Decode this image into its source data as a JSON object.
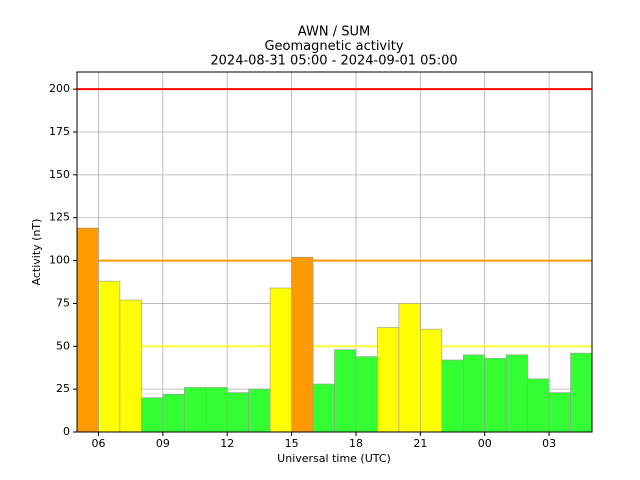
{
  "chart_data": {
    "type": "bar",
    "title": [
      "AWN / SUM",
      "Geomagnetic activity",
      "2024-08-31 05:00 - 2024-09-01 05:00"
    ],
    "xlabel": "Universal time (UTC)",
    "ylabel": "Activity (nT)",
    "x": [
      5,
      6,
      7,
      8,
      9,
      10,
      11,
      12,
      13,
      14,
      15,
      16,
      17,
      18,
      19,
      20,
      21,
      22,
      23,
      24,
      25,
      26,
      27,
      28
    ],
    "values": [
      119,
      88,
      77,
      20,
      22,
      26,
      26,
      23,
      25,
      84,
      102,
      28,
      48,
      44,
      61,
      75,
      60,
      42,
      45,
      43,
      45,
      31,
      23,
      46
    ],
    "colors": [
      "#ff9900",
      "#ffff00",
      "#ffff00",
      "#33ff33",
      "#33ff33",
      "#33ff33",
      "#33ff33",
      "#33ff33",
      "#33ff33",
      "#ffff00",
      "#ff9900",
      "#33ff33",
      "#33ff33",
      "#33ff33",
      "#ffff00",
      "#ffff00",
      "#ffff00",
      "#33ff33",
      "#33ff33",
      "#33ff33",
      "#33ff33",
      "#33ff33",
      "#33ff33",
      "#33ff33"
    ],
    "edgecolor": "#999999",
    "xlim": [
      5,
      29
    ],
    "xticks": [
      {
        "value": 6,
        "label": "06"
      },
      {
        "value": 9,
        "label": "09"
      },
      12,
      15,
      18,
      21,
      {
        "value": 24,
        "label": "00"
      },
      {
        "value": 27,
        "label": "03"
      }
    ],
    "ylim": [
      0,
      210
    ],
    "yticks": [
      0,
      25,
      50,
      75,
      100,
      125,
      150,
      175,
      200
    ],
    "grid": true,
    "reference_lines": [
      {
        "value": 200,
        "color": "#ff0000"
      },
      {
        "value": 100,
        "color": "#ff9900"
      },
      {
        "value": 50,
        "color": "#ffff33"
      }
    ]
  }
}
